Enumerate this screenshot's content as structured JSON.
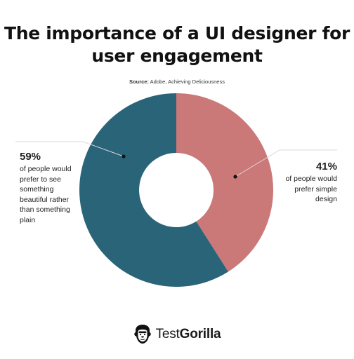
{
  "title": "The importance of a UI designer for user engagement",
  "source": {
    "label": "Source:",
    "text": "Adobe, Achieving Deliciousness"
  },
  "chart_data": {
    "type": "pie",
    "style": "donut",
    "slices": [
      {
        "label": "of people would prefer to see something beautiful rather than something plain",
        "value": 59,
        "value_label": "59%",
        "color": "#2a6478"
      },
      {
        "label": "of people would prefer simple design",
        "value": 41,
        "value_label": "41%",
        "color": "#cb7878"
      }
    ]
  },
  "brand": {
    "name_light": "Test",
    "name_bold": "Gorilla",
    "icon": "gorilla-logo-icon"
  }
}
